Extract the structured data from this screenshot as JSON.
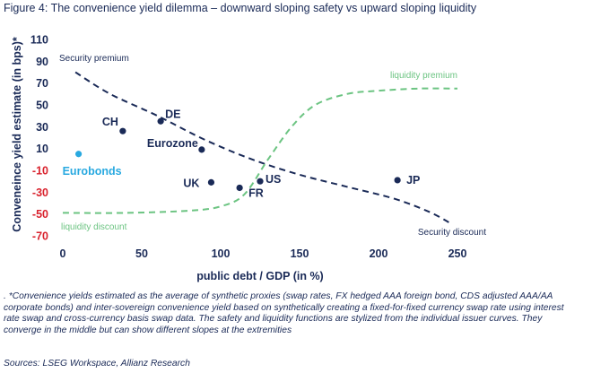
{
  "figure": {
    "title": "Figure 4: The convenience yield dilemma – downward sloping safety vs upward sloping liquidity",
    "footnote": ". *Convenience yields estimated as the average of synthetic proxies (swap rates, FX hedged AAA foreign bond, CDS adjusted AAA/AA corporate bonds) and inter-sovereign convenience yield based on synthetically creating a fixed-for-fixed currency swap rate using interest rate swap and cross-currency basis swap data. The safety and liquidity functions are stylized from the individual issuer curves. They converge in the middle but can show different slopes at the extremities",
    "source": "Sources: LSEG Workspace, Allianz Research"
  },
  "colors": {
    "text": "#1a2a57",
    "dark_point": "#1a2a57",
    "eurobonds": "#29a9e0",
    "security_line": "#1a2a57",
    "liquidity_line": "#6cc482",
    "negative_tick": "#d9232e"
  },
  "chart_data": {
    "type": "scatter",
    "xlabel": "public debt / GDP (in %)",
    "ylabel": "Conveneince yield estimate (in bps)*",
    "xlim": [
      0,
      250
    ],
    "ylim": [
      -70,
      110
    ],
    "x_ticks": [
      "0",
      "50",
      "100",
      "150",
      "200",
      "250"
    ],
    "y_ticks": [
      "110",
      "90",
      "70",
      "50",
      "30",
      "10",
      "-10",
      "-30",
      "-50",
      "-70"
    ],
    "y_tick_values": [
      110,
      90,
      70,
      50,
      30,
      10,
      -10,
      -30,
      -50,
      -70
    ],
    "x_tick_values": [
      0,
      50,
      100,
      150,
      200,
      250
    ],
    "grid": false,
    "points": [
      {
        "label": "CH",
        "x": 38,
        "y": 26,
        "color": "dark"
      },
      {
        "label": "DE",
        "x": 62,
        "y": 35,
        "color": "dark"
      },
      {
        "label": "Eurozone",
        "x": 88,
        "y": 9,
        "color": "dark"
      },
      {
        "label": "UK",
        "x": 94,
        "y": -21,
        "color": "dark"
      },
      {
        "label": "FR",
        "x": 112,
        "y": -26,
        "color": "dark"
      },
      {
        "label": "US",
        "x": 125,
        "y": -20,
        "color": "dark"
      },
      {
        "label": "JP",
        "x": 212,
        "y": -19,
        "color": "dark"
      },
      {
        "label": "Eurobonds",
        "x": 10,
        "y": 5,
        "color": "eurobonds"
      }
    ],
    "series": [
      {
        "name": "Security premium",
        "end_label": "Security discount",
        "style": "dashed",
        "x": [
          8,
          30,
          60,
          90,
          120,
          150,
          180,
          210,
          232,
          245
        ],
        "y": [
          80,
          60,
          40,
          18,
          0,
          -14,
          -25,
          -36,
          -48,
          -58
        ]
      },
      {
        "name": "liquidity premium",
        "end_label": "liquidity discount",
        "style": "dashed",
        "x": [
          0,
          40,
          80,
          100,
          115,
          130,
          145,
          160,
          180,
          200,
          225,
          250
        ],
        "y": [
          -49,
          -49,
          -47,
          -43,
          -32,
          0,
          30,
          50,
          60,
          63,
          65,
          65
        ]
      }
    ]
  }
}
